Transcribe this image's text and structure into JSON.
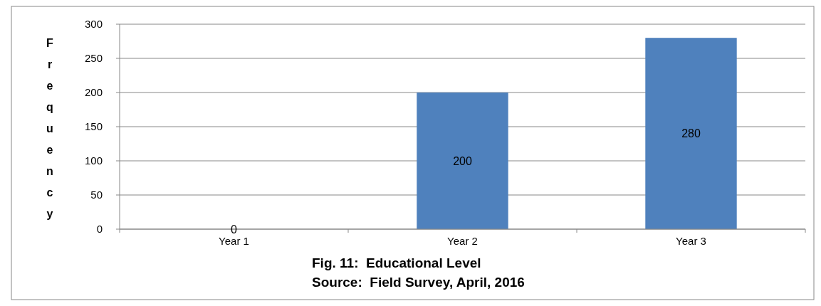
{
  "chart_data": {
    "type": "bar",
    "title": "Fig. 11:  Educational Level",
    "ylabel": "Frequency",
    "annotations": [
      "Source:  Field Survey, April, 2016"
    ],
    "categories": [
      "Year 1",
      "Year 2",
      "Year 3"
    ],
    "values": [
      0,
      200,
      280
    ],
    "color": "#4f81bd",
    "ylim": [
      0,
      300
    ],
    "yticks": [
      0,
      50,
      100,
      150,
      200,
      250,
      300
    ],
    "grid": "y",
    "data_labels": true
  }
}
